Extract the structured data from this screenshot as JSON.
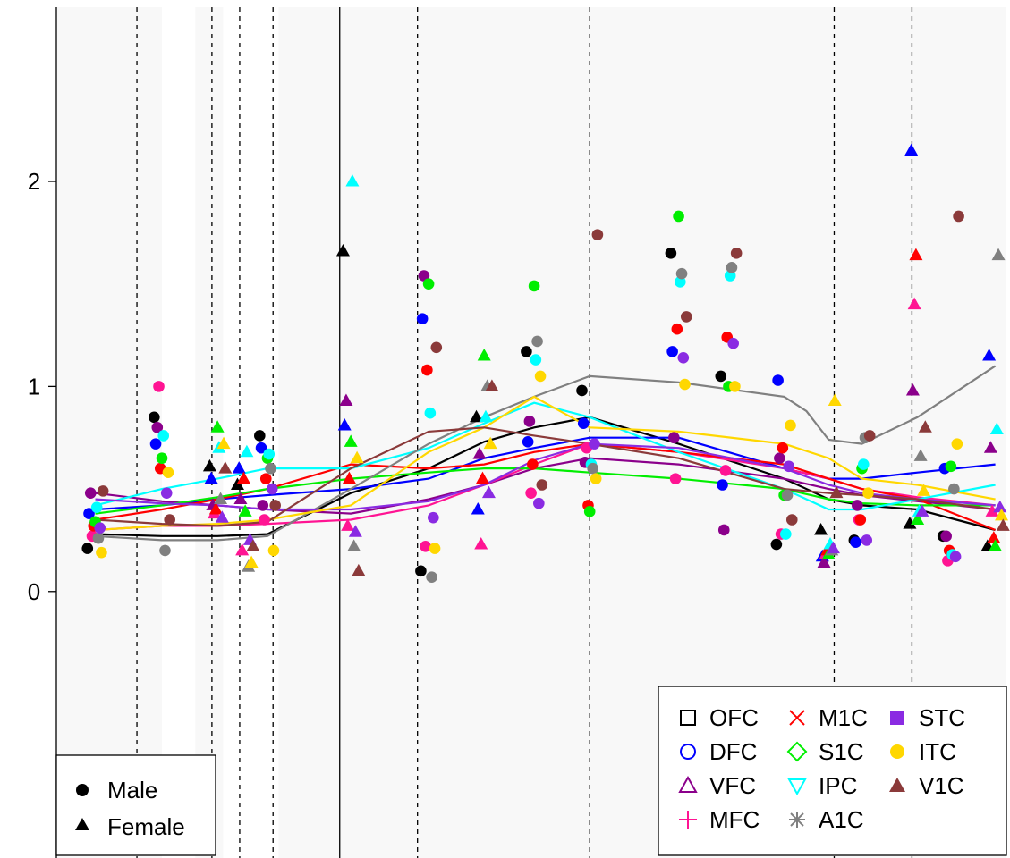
{
  "chart_data": {
    "type": "scatter",
    "title": "",
    "xlabel": "",
    "ylabel": "",
    "ylim": [
      -1.3,
      2.85
    ],
    "yticks": [
      0,
      1,
      2
    ],
    "ytick_labels": [
      "0",
      "1",
      "2"
    ],
    "xlim": [
      -0.3,
      16.8
    ],
    "grid": false,
    "background": "#f8f8f8",
    "stripe_bands": [
      [
        1.6,
        2.2
      ],
      [
        2.7,
        3.7
      ]
    ],
    "vertical_lines": {
      "solid": [
        4.8
      ],
      "dashed": [
        1.15,
        2.5,
        3.0,
        3.6,
        6.2,
        9.3,
        13.7,
        15.1
      ]
    },
    "regions": [
      "OFC",
      "DFC",
      "VFC",
      "MFC",
      "M1C",
      "S1C",
      "IPC",
      "A1C",
      "STC",
      "ITC",
      "V1C"
    ],
    "region_colors": {
      "OFC": "#000000",
      "DFC": "#0000ff",
      "VFC": "#8b008b",
      "MFC": "#ff1493",
      "M1C": "#ff0000",
      "S1C": "#00ee00",
      "IPC": "#00ffff",
      "A1C": "#808080",
      "STC": "#8a2be2",
      "ITC": "#ffd700",
      "V1C": "#8b3a3a"
    },
    "region_symbols": {
      "OFC": "square-open",
      "DFC": "circle-open",
      "VFC": "triangle-open",
      "MFC": "plus",
      "M1C": "cross",
      "S1C": "diamond-open",
      "IPC": "triangle-down-open",
      "A1C": "asterisk",
      "STC": "square-filled",
      "ITC": "circle-filled",
      "V1C": "triangle-filled"
    },
    "sex_legend": [
      {
        "label": "Male",
        "symbol": "circle"
      },
      {
        "label": "Female",
        "symbol": "triangle"
      }
    ],
    "legend_placement": {
      "sex": "bottom-left",
      "region": "bottom-right"
    },
    "time_points": [
      0.4,
      1.6,
      2.6,
      3.1,
      3.5,
      5.0,
      6.4,
      7.4,
      8.3,
      9.3,
      10.9,
      11.8,
      12.8,
      13.6,
      14.2,
      15.2,
      15.8,
      16.6
    ],
    "point_sex": [
      "M",
      "M",
      "F",
      "F",
      "M",
      "F",
      "M",
      "F",
      "M",
      "M",
      "M",
      "M",
      "M",
      "F",
      "M",
      "F",
      "M",
      "F"
    ],
    "trend_lines": [
      {
        "name": "OFC",
        "x": [
          0.4,
          1.6,
          2.6,
          3.5,
          5.0,
          6.4,
          7.4,
          8.3,
          9.3,
          10.9,
          12.8,
          13.6,
          14.2,
          15.2,
          16.6
        ],
        "y": [
          0.28,
          0.27,
          0.27,
          0.28,
          0.48,
          0.6,
          0.73,
          0.8,
          0.85,
          0.72,
          0.55,
          0.45,
          0.42,
          0.4,
          0.3
        ]
      },
      {
        "name": "DFC",
        "x": [
          0.4,
          1.6,
          2.6,
          3.5,
          5.0,
          6.4,
          7.4,
          8.3,
          9.3,
          10.9,
          12.8,
          13.6,
          14.2,
          15.2,
          16.6
        ],
        "y": [
          0.4,
          0.42,
          0.45,
          0.47,
          0.5,
          0.55,
          0.65,
          0.7,
          0.75,
          0.75,
          0.6,
          0.55,
          0.55,
          0.58,
          0.62
        ]
      },
      {
        "name": "VFC",
        "x": [
          0.4,
          1.6,
          2.6,
          3.5,
          5.0,
          6.4,
          7.4,
          8.3,
          9.3,
          10.9,
          12.8,
          13.6,
          14.2,
          15.2,
          16.6
        ],
        "y": [
          0.48,
          0.44,
          0.42,
          0.4,
          0.38,
          0.45,
          0.52,
          0.6,
          0.65,
          0.62,
          0.55,
          0.5,
          0.47,
          0.44,
          0.4
        ]
      },
      {
        "name": "MFC",
        "x": [
          0.4,
          1.6,
          2.6,
          3.5,
          5.0,
          6.4,
          7.4,
          8.3,
          9.3,
          10.9,
          12.8,
          13.6,
          14.2,
          15.2,
          16.6
        ],
        "y": [
          0.3,
          0.32,
          0.32,
          0.33,
          0.35,
          0.42,
          0.52,
          0.62,
          0.72,
          0.68,
          0.6,
          0.55,
          0.5,
          0.46,
          0.42
        ]
      },
      {
        "name": "M1C",
        "x": [
          0.4,
          1.6,
          2.6,
          3.5,
          5.0,
          6.4,
          7.4,
          8.3,
          9.3,
          10.9,
          12.8,
          13.6,
          14.2,
          15.2,
          16.6
        ],
        "y": [
          0.35,
          0.4,
          0.45,
          0.5,
          0.62,
          0.6,
          0.62,
          0.68,
          0.72,
          0.68,
          0.62,
          0.55,
          0.5,
          0.45,
          0.3
        ]
      },
      {
        "name": "S1C",
        "x": [
          0.4,
          1.6,
          2.6,
          3.5,
          5.0,
          6.4,
          7.4,
          8.3,
          9.3,
          10.9,
          12.8,
          13.6,
          14.2,
          15.2,
          16.6
        ],
        "y": [
          0.38,
          0.42,
          0.46,
          0.5,
          0.55,
          0.58,
          0.6,
          0.6,
          0.58,
          0.55,
          0.5,
          0.45,
          0.43,
          0.42,
          0.42
        ]
      },
      {
        "name": "IPC",
        "x": [
          0.4,
          1.6,
          2.6,
          3.5,
          5.0,
          6.4,
          7.4,
          8.3,
          9.3,
          10.9,
          12.8,
          13.6,
          14.2,
          15.2,
          16.6
        ],
        "y": [
          0.42,
          0.5,
          0.55,
          0.6,
          0.6,
          0.7,
          0.82,
          0.92,
          0.85,
          0.68,
          0.5,
          0.4,
          0.4,
          0.45,
          0.52
        ]
      },
      {
        "name": "A1C",
        "x": [
          0.4,
          1.6,
          2.6,
          3.5,
          5.0,
          6.4,
          7.4,
          8.3,
          9.3,
          10.9,
          12.8,
          13.2,
          13.6,
          14.2,
          15.2,
          16.6
        ],
        "y": [
          0.27,
          0.25,
          0.25,
          0.27,
          0.5,
          0.72,
          0.85,
          0.95,
          1.05,
          1.02,
          0.95,
          0.88,
          0.74,
          0.72,
          0.85,
          1.1
        ]
      },
      {
        "name": "STC",
        "x": [
          0.4,
          1.6,
          2.6,
          3.5,
          5.0,
          6.4,
          7.4,
          8.3,
          9.3,
          10.9,
          12.8,
          13.6,
          14.2,
          15.2,
          16.6
        ],
        "y": [
          0.45,
          0.43,
          0.42,
          0.4,
          0.4,
          0.44,
          0.52,
          0.64,
          0.72,
          0.7,
          0.6,
          0.52,
          0.48,
          0.45,
          0.42
        ]
      },
      {
        "name": "ITC",
        "x": [
          0.4,
          1.6,
          2.6,
          3.5,
          5.0,
          6.4,
          7.4,
          8.3,
          9.3,
          10.9,
          12.8,
          13.6,
          14.2,
          15.2,
          16.6
        ],
        "y": [
          0.3,
          0.32,
          0.33,
          0.35,
          0.42,
          0.68,
          0.8,
          0.95,
          0.8,
          0.78,
          0.72,
          0.65,
          0.55,
          0.52,
          0.45
        ]
      },
      {
        "name": "V1C",
        "x": [
          0.4,
          1.6,
          2.6,
          3.5,
          5.0,
          6.4,
          7.4,
          8.3,
          9.3,
          10.9,
          12.8,
          13.6,
          14.2,
          15.2,
          16.6
        ],
        "y": [
          0.35,
          0.33,
          0.32,
          0.34,
          0.6,
          0.78,
          0.8,
          0.76,
          0.72,
          0.65,
          0.5,
          0.48,
          0.47,
          0.45,
          0.4
        ]
      }
    ],
    "points": [
      {
        "region": "OFC",
        "y": [
          0.21,
          0.85,
          0.61,
          0.52,
          0.76,
          1.66,
          0.1,
          0.85,
          1.17,
          0.98,
          1.65,
          1.05,
          0.23,
          0.3,
          0.25,
          0.33,
          0.27,
          0.22
        ]
      },
      {
        "region": "DFC",
        "y": [
          0.38,
          0.72,
          0.55,
          0.6,
          0.7,
          0.81,
          1.33,
          0.4,
          0.73,
          0.82,
          1.17,
          0.52,
          1.03,
          0.17,
          0.24,
          2.15,
          0.6,
          1.15
        ]
      },
      {
        "region": "VFC",
        "y": [
          0.48,
          0.8,
          0.42,
          0.45,
          0.42,
          0.93,
          1.54,
          0.67,
          0.83,
          0.63,
          0.75,
          0.3,
          0.65,
          0.14,
          0.42,
          0.98,
          0.27,
          0.7
        ]
      },
      {
        "region": "MFC",
        "y": [
          0.27,
          1.0,
          0.38,
          0.2,
          0.35,
          0.32,
          0.22,
          0.23,
          0.48,
          0.7,
          0.55,
          0.59,
          0.28,
          0.18,
          0.35,
          1.4,
          0.15,
          0.39
        ]
      },
      {
        "region": "M1C",
        "y": [
          0.32,
          0.6,
          0.4,
          0.55,
          0.55,
          0.55,
          1.08,
          0.55,
          0.62,
          0.42,
          1.28,
          1.24,
          0.7,
          0.2,
          0.35,
          1.64,
          0.2,
          0.26
        ]
      },
      {
        "region": "S1C",
        "y": [
          0.34,
          0.65,
          0.8,
          0.39,
          0.65,
          0.73,
          1.5,
          1.15,
          1.49,
          0.39,
          1.83,
          1.0,
          0.47,
          0.18,
          0.6,
          0.35,
          0.61,
          0.22
        ]
      },
      {
        "region": "IPC",
        "y": [
          0.41,
          0.76,
          0.7,
          0.68,
          0.67,
          2.0,
          0.87,
          0.85,
          1.13,
          0.62,
          1.51,
          1.54,
          0.28,
          0.23,
          0.62,
          0.39,
          0.18,
          0.79
        ]
      },
      {
        "region": "A1C",
        "y": [
          0.26,
          0.2,
          0.45,
          0.12,
          0.6,
          0.22,
          0.07,
          1.0,
          1.22,
          0.6,
          1.55,
          1.58,
          0.47,
          0.2,
          0.75,
          0.66,
          0.5,
          1.64
        ]
      },
      {
        "region": "STC",
        "y": [
          0.31,
          0.48,
          0.36,
          0.25,
          0.5,
          0.29,
          0.36,
          0.48,
          0.43,
          0.72,
          1.14,
          1.21,
          0.61,
          0.21,
          0.25,
          0.39,
          0.17,
          0.41
        ]
      },
      {
        "region": "ITC",
        "y": [
          0.19,
          0.58,
          0.72,
          0.14,
          0.2,
          0.65,
          0.21,
          0.72,
          1.05,
          0.55,
          1.01,
          1.0,
          0.81,
          0.93,
          0.48,
          0.49,
          0.72,
          0.37
        ]
      },
      {
        "region": "V1C",
        "y": [
          0.49,
          0.35,
          0.6,
          0.22,
          0.42,
          0.1,
          1.19,
          1.0,
          0.52,
          1.74,
          1.34,
          1.65,
          0.35,
          0.48,
          0.76,
          0.8,
          1.83,
          0.32
        ]
      }
    ]
  },
  "legend": {
    "sex": [
      {
        "label": "Male",
        "symbol": "circle"
      },
      {
        "label": "Female",
        "symbol": "triangle"
      }
    ],
    "regions": [
      {
        "label": "OFC",
        "color": "#000000",
        "symbol": "square-open"
      },
      {
        "label": "DFC",
        "color": "#0000ff",
        "symbol": "circle-open"
      },
      {
        "label": "VFC",
        "color": "#8b008b",
        "symbol": "triangle-open"
      },
      {
        "label": "MFC",
        "color": "#ff1493",
        "symbol": "plus"
      },
      {
        "label": "M1C",
        "color": "#ff0000",
        "symbol": "cross"
      },
      {
        "label": "S1C",
        "color": "#00ee00",
        "symbol": "diamond-open"
      },
      {
        "label": "IPC",
        "color": "#00ffff",
        "symbol": "triangle-down-open"
      },
      {
        "label": "A1C",
        "color": "#808080",
        "symbol": "asterisk"
      },
      {
        "label": "STC",
        "color": "#8a2be2",
        "symbol": "square-filled"
      },
      {
        "label": "ITC",
        "color": "#ffd700",
        "symbol": "circle-filled"
      },
      {
        "label": "V1C",
        "color": "#8b3a3a",
        "symbol": "triangle-filled"
      }
    ]
  }
}
